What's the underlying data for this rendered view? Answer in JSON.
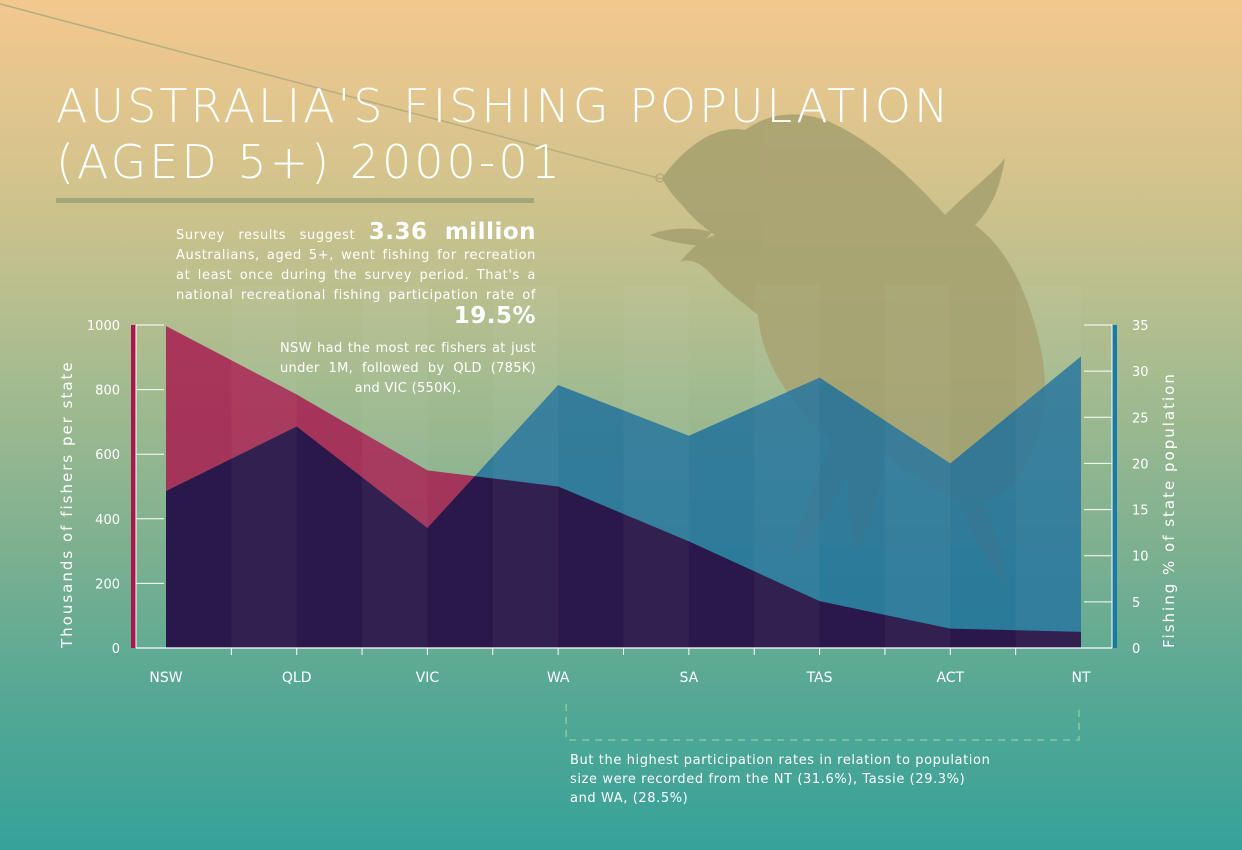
{
  "title_lines": [
    "Australia's fishing population",
    "(aged 5+) 2000-01"
  ],
  "text": {
    "p1_before": "Survey results suggest",
    "p1_highlight": "3.36 million",
    "p1_middle": "Australians, aged 5+, went fishing for recreation at least once during the survey period. That's a national recreational fishing participation rate of",
    "p1_rate": "19.5%",
    "p2": "NSW had the most rec fishers at just under 1M, followed by QLD (785K) and VIC (550K).",
    "p3_lines": [
      "But the highest participation rates in relation to population",
      "size were recorded from the NT (31.6%), Tassie (29.3%)",
      "and WA, (28.5%)"
    ]
  },
  "colors": {
    "count_area": "#a8174e",
    "rate_area": "#1c6f9c",
    "overlap_area": "#2a1044",
    "accent_left_axis": "#a8174e",
    "accent_right_axis": "#1c7aa0",
    "fish_silhouette": "#a4a06e"
  },
  "chart_data": {
    "type": "area",
    "categories": [
      "NSW",
      "QLD",
      "VIC",
      "WA",
      "SA",
      "TAS",
      "ACT",
      "NT"
    ],
    "series": [
      {
        "axis": "left",
        "values": [
          997,
          785,
          550,
          500,
          330,
          145,
          60,
          50
        ]
      },
      {
        "axis": "right",
        "values": [
          17.0,
          24.0,
          13.0,
          28.5,
          23.0,
          29.3,
          20.0,
          31.6
        ]
      }
    ],
    "ylabel_left": "Thousands of fishers per state",
    "ylabel_right": "Fishing % of state population",
    "ylim_left": [
      0,
      1000
    ],
    "ylim_right": [
      0,
      35
    ],
    "yticks_left": [
      0,
      200,
      400,
      600,
      800,
      1000
    ],
    "yticks_right": [
      0,
      5,
      10,
      15,
      20,
      25,
      30,
      35
    ],
    "bracket_from": "WA",
    "bracket_to": "NT",
    "grid": false
  }
}
